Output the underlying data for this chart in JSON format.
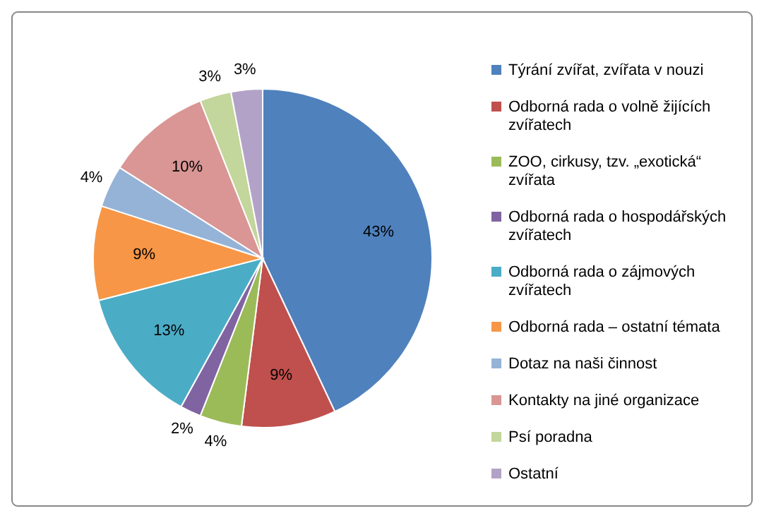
{
  "chart_data": {
    "type": "pie",
    "categories": [
      "Týrání zvířat, zvířata v nouzi",
      "Odborná rada o volně žijících zvířatech",
      "ZOO, cirkusy, tzv. „exotická“ zvířata",
      "Odborná rada o hospodářských zvířatech",
      "Odborná rada o zájmových zvířatech",
      "Odborná rada – ostatní témata",
      "Dotaz na naši činnost",
      "Kontakty na jiné organizace",
      "Psí poradna",
      "Ostatní"
    ],
    "values": [
      43,
      9,
      4,
      2,
      13,
      9,
      4,
      10,
      3,
      3
    ],
    "value_labels": [
      "43%",
      "9%",
      "4%",
      "2%",
      "13%",
      "9%",
      "4%",
      "10%",
      "3%",
      "3%"
    ],
    "colors": [
      "#4f81bd",
      "#c0504d",
      "#9bbb59",
      "#8064a2",
      "#4bacc6",
      "#f79646",
      "#95b3d7",
      "#d99694",
      "#c3d69b",
      "#b3a2c7"
    ],
    "legend": "right"
  }
}
